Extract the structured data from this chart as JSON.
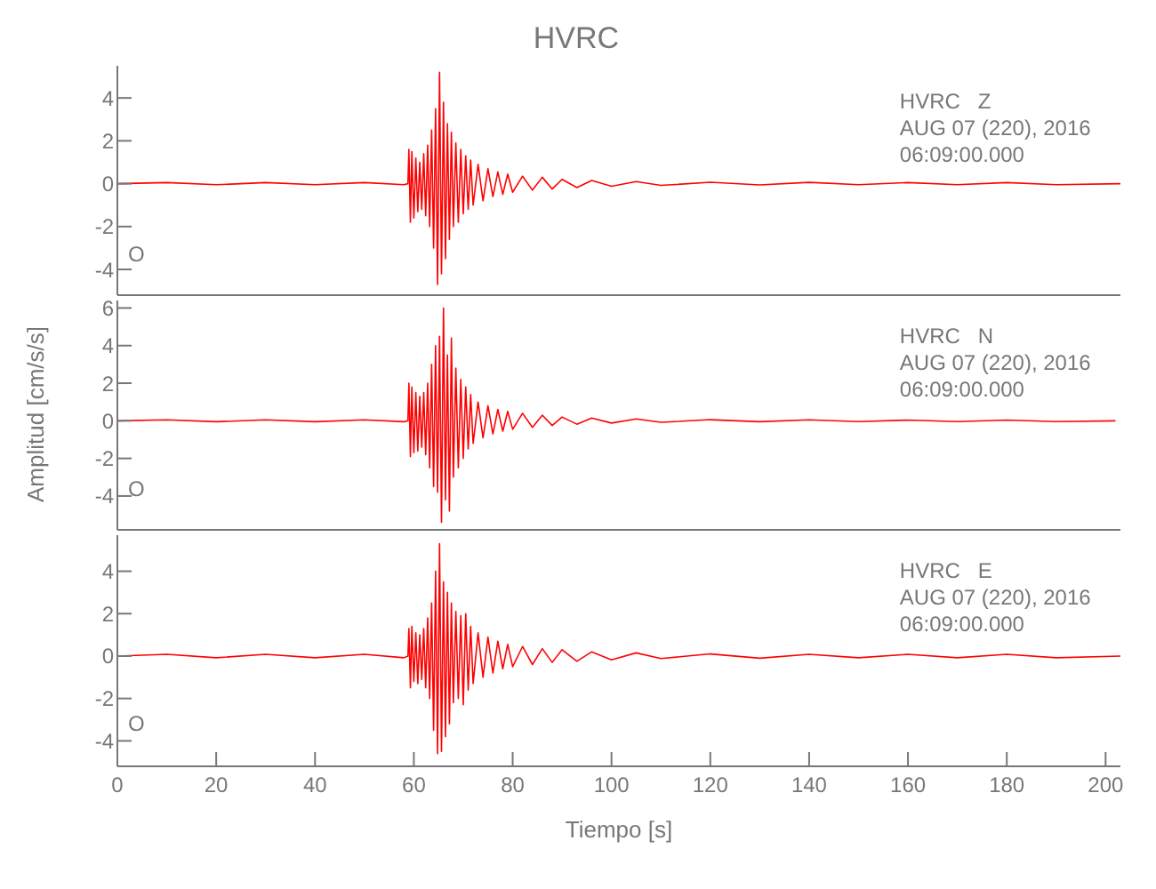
{
  "chart_data": [
    {
      "type": "line",
      "title": "HVRC",
      "xlim": [
        0,
        203
      ],
      "xticks": [
        0,
        20,
        40,
        60,
        80,
        100,
        120,
        140,
        160,
        180,
        200
      ],
      "ylim": [
        -5.2,
        5.5
      ],
      "yticks": [
        -4,
        -2,
        0,
        2,
        4
      ],
      "tick_labels": "y",
      "marker": "none",
      "annotations": [
        "HVRC   Z",
        "AUG 07 (220), 2016",
        "06:09:00.000",
        "O"
      ],
      "series": [
        {
          "color": "#ff0000",
          "x": [
            0,
            10,
            20,
            30,
            40,
            50,
            58,
            58.8,
            59,
            59.3,
            59.6,
            60,
            60.4,
            60.8,
            61.2,
            61.6,
            62,
            62.4,
            62.8,
            63.2,
            63.6,
            64,
            64.4,
            64.8,
            65.2,
            65.6,
            66,
            66.4,
            66.8,
            67.2,
            67.6,
            68,
            68.5,
            69,
            69.5,
            70,
            70.5,
            71,
            71.5,
            72,
            73,
            74,
            75,
            76,
            77,
            78,
            79,
            80,
            82,
            84,
            86,
            88,
            90,
            93,
            96,
            100,
            105,
            110,
            120,
            130,
            140,
            150,
            160,
            170,
            180,
            190,
            203
          ],
          "values": [
            0,
            0.05,
            -0.05,
            0.05,
            -0.05,
            0.05,
            -0.05,
            0,
            1.6,
            -1.8,
            1.5,
            -1.6,
            1.2,
            -1.3,
            1.0,
            -1.2,
            1.4,
            -1.5,
            1.8,
            -2.0,
            2.5,
            -3.0,
            3.5,
            -4.7,
            5.2,
            -4.2,
            3.8,
            -3.5,
            2.8,
            -2.6,
            2.4,
            -2.0,
            1.9,
            -1.8,
            1.6,
            -1.4,
            1.3,
            -1.2,
            1.1,
            -1.0,
            0.9,
            -0.8,
            0.7,
            -0.6,
            0.55,
            -0.5,
            0.45,
            -0.4,
            0.35,
            -0.3,
            0.3,
            -0.25,
            0.2,
            -0.18,
            0.15,
            -0.12,
            0.1,
            -0.08,
            0.07,
            -0.06,
            0.06,
            -0.05,
            0.05,
            -0.05,
            0.05,
            -0.05,
            0
          ]
        }
      ]
    },
    {
      "type": "line",
      "ylabel": "Amplitud [cm/s/s]",
      "xlim": [
        0,
        203
      ],
      "xticks": [
        0,
        20,
        40,
        60,
        80,
        100,
        120,
        140,
        160,
        180,
        200
      ],
      "ylim": [
        -5.8,
        6.4
      ],
      "yticks": [
        -4,
        -2,
        0,
        2,
        4,
        6
      ],
      "tick_labels": "y",
      "marker": "none",
      "annotations": [
        "HVRC   N",
        "AUG 07 (220), 2016",
        "06:09:00.000",
        "O"
      ],
      "series": [
        {
          "color": "#ff0000",
          "x": [
            0,
            10,
            20,
            30,
            40,
            50,
            58,
            58.8,
            59,
            59.3,
            59.6,
            60,
            60.4,
            60.8,
            61.2,
            61.6,
            62,
            62.4,
            62.8,
            63.2,
            63.6,
            64,
            64.4,
            64.8,
            65.2,
            65.6,
            66,
            66.4,
            66.8,
            67.2,
            67.6,
            68,
            68.5,
            69,
            69.5,
            70,
            70.5,
            71,
            71.5,
            72,
            73,
            74,
            75,
            76,
            77,
            78,
            79,
            80,
            82,
            84,
            86,
            88,
            90,
            93,
            96,
            100,
            105,
            110,
            120,
            130,
            140,
            150,
            160,
            170,
            180,
            190,
            202
          ],
          "values": [
            0,
            0.05,
            -0.05,
            0.05,
            -0.05,
            0.05,
            -0.05,
            0,
            2.0,
            -1.9,
            1.8,
            -1.7,
            1.5,
            -1.6,
            1.3,
            -1.4,
            1.5,
            -1.8,
            2.0,
            -2.5,
            3.0,
            -3.5,
            4.0,
            -3.8,
            4.5,
            -5.4,
            6.0,
            -4.2,
            3.5,
            -4.8,
            4.4,
            -3.0,
            2.8,
            -2.5,
            2.2,
            -2.0,
            1.8,
            -1.5,
            1.4,
            -1.2,
            1.0,
            -0.9,
            0.8,
            -0.7,
            0.6,
            -0.55,
            0.5,
            -0.45,
            0.4,
            -0.35,
            0.3,
            -0.25,
            0.2,
            -0.18,
            0.15,
            -0.12,
            0.1,
            -0.08,
            0.06,
            -0.05,
            0.05,
            -0.04,
            0.04,
            -0.04,
            0.04,
            -0.04,
            0
          ]
        }
      ]
    },
    {
      "type": "line",
      "xlabel": "Tiempo [s]",
      "xlim": [
        0,
        203
      ],
      "xticks": [
        0,
        20,
        40,
        60,
        80,
        100,
        120,
        140,
        160,
        180,
        200
      ],
      "ylim": [
        -5.2,
        5.7
      ],
      "yticks": [
        -4,
        -2,
        0,
        2,
        4
      ],
      "marker": "none",
      "annotations": [
        "HVRC   E",
        "AUG 07 (220), 2016",
        "06:09:00.000",
        "O"
      ],
      "series": [
        {
          "color": "#ff0000",
          "x": [
            0,
            10,
            20,
            30,
            40,
            50,
            58,
            58.8,
            59,
            59.3,
            59.6,
            60,
            60.4,
            60.8,
            61.2,
            61.6,
            62,
            62.4,
            62.8,
            63.2,
            63.6,
            64,
            64.4,
            64.8,
            65.2,
            65.6,
            66,
            66.4,
            66.8,
            67.2,
            67.6,
            68,
            68.5,
            69,
            69.5,
            70,
            70.5,
            71,
            71.5,
            72,
            73,
            74,
            75,
            76,
            77,
            78,
            79,
            80,
            82,
            84,
            86,
            88,
            90,
            93,
            96,
            100,
            105,
            110,
            120,
            130,
            140,
            150,
            160,
            170,
            180,
            190,
            203
          ],
          "values": [
            0,
            0.08,
            -0.08,
            0.08,
            -0.08,
            0.08,
            -0.08,
            0,
            1.3,
            -1.5,
            1.4,
            -1.2,
            1.1,
            -1.3,
            1.0,
            -1.1,
            1.3,
            -1.5,
            1.8,
            -2.0,
            2.5,
            -3.5,
            4.0,
            -4.6,
            5.3,
            -4.5,
            3.5,
            -3.8,
            3.0,
            -3.2,
            2.5,
            -2.2,
            2.1,
            -2.0,
            1.9,
            -2.3,
            2.0,
            -1.6,
            1.4,
            -1.3,
            1.1,
            -1.0,
            0.9,
            -0.8,
            0.7,
            -0.6,
            0.55,
            -0.5,
            0.45,
            -0.4,
            0.35,
            -0.3,
            0.3,
            -0.25,
            0.2,
            -0.18,
            0.15,
            -0.12,
            0.1,
            -0.1,
            0.08,
            -0.08,
            0.08,
            -0.08,
            0.08,
            -0.08,
            0
          ]
        }
      ]
    }
  ]
}
